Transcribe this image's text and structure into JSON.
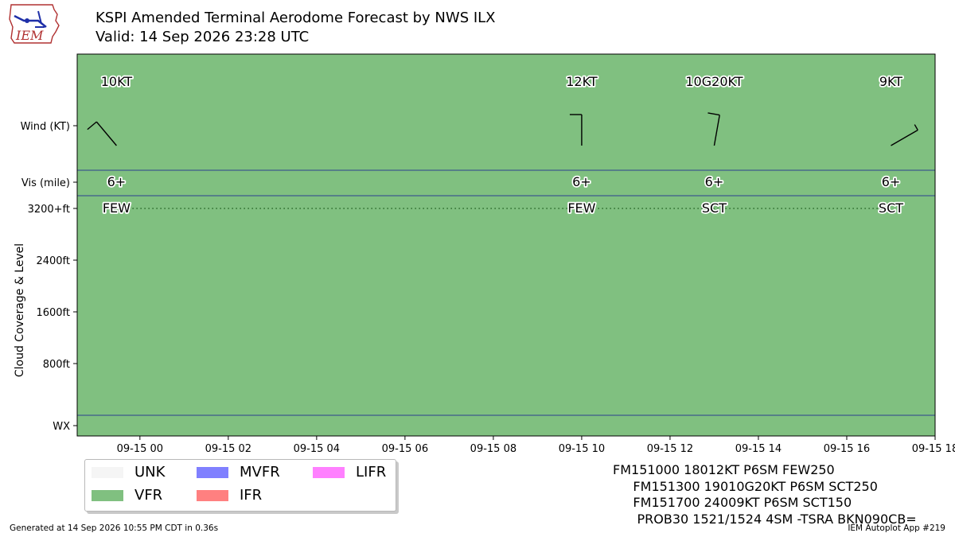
{
  "logo": {
    "text": "IEM"
  },
  "header": {
    "title": "KSPI Amended Terminal Aerodome Forecast by NWS ILX",
    "subtitle": "Valid: 14 Sep 2026 23:28 UTC"
  },
  "chart_data": {
    "type": "timeline",
    "background_category": "VFR",
    "background_color": "#80c080",
    "x_axis": {
      "type": "datetime",
      "range": [
        "2026-09-14 22:35",
        "2026-09-15 18:00"
      ],
      "tick_labels": [
        "09-15 00",
        "09-15 02",
        "09-15 04",
        "09-15 06",
        "09-15 08",
        "09-15 10",
        "09-15 12",
        "09-15 14",
        "09-15 16",
        "09-15 18"
      ],
      "tick_hours": [
        0,
        2,
        4,
        6,
        8,
        10,
        12,
        14,
        16,
        18
      ]
    },
    "y_axis": {
      "label": "Cloud Coverage & Level",
      "row_labels": {
        "wind": "Wind (KT)",
        "vis": "Vis (mile)",
        "wx": "WX"
      },
      "cloud_tick_labels": [
        "3200+ft",
        "2400ft",
        "1600ft",
        "800ft"
      ],
      "cloud_tick_values": [
        3200,
        2400,
        1600,
        800
      ],
      "cloud_range": [
        0,
        3200
      ]
    },
    "periods": [
      {
        "time": "2026-09-14 23:28",
        "hour": -0.53,
        "wind_label": "10KT",
        "wind_dir": 140,
        "wind_speed": 10,
        "wind_gust": null,
        "vis_label": "6+",
        "cloud_label": "FEW",
        "cloud_level_ft": 25000
      },
      {
        "time": "2026-09-15 10:00",
        "hour": 10,
        "wind_label": "12KT",
        "wind_dir": 180,
        "wind_speed": 12,
        "wind_gust": null,
        "vis_label": "6+",
        "cloud_label": "FEW",
        "cloud_level_ft": 25000
      },
      {
        "time": "2026-09-15 13:00",
        "hour": 13,
        "wind_label": "10G20KT",
        "wind_dir": 190,
        "wind_speed": 10,
        "wind_gust": 20,
        "vis_label": "6+",
        "cloud_label": "SCT",
        "cloud_level_ft": 25000
      },
      {
        "time": "2026-09-15 17:00",
        "hour": 17,
        "wind_label": "9KT",
        "wind_dir": 240,
        "wind_speed": 9,
        "wind_gust": null,
        "vis_label": "6+",
        "cloud_label": "SCT",
        "cloud_level_ft": 15000
      }
    ],
    "legend": [
      {
        "label": "UNK",
        "color": "#f5f5f5"
      },
      {
        "label": "VFR",
        "color": "#80c080"
      },
      {
        "label": "MVFR",
        "color": "#8080ff"
      },
      {
        "label": "IFR",
        "color": "#ff8080"
      },
      {
        "label": "LIFR",
        "color": "#ff80ff"
      }
    ]
  },
  "taf_text": [
    "FM151000 18012KT P6SM FEW250",
    "     FM151300 19010G20KT P6SM SCT250",
    "     FM151700 24009KT P6SM SCT150",
    "      PROB30 1521/1524 4SM -TSRA BKN090CB="
  ],
  "footer": {
    "generated": "Generated at 14 Sep 2026 10:55 PM CDT in 0.36s",
    "app": "IEM Autoplot App #219"
  }
}
